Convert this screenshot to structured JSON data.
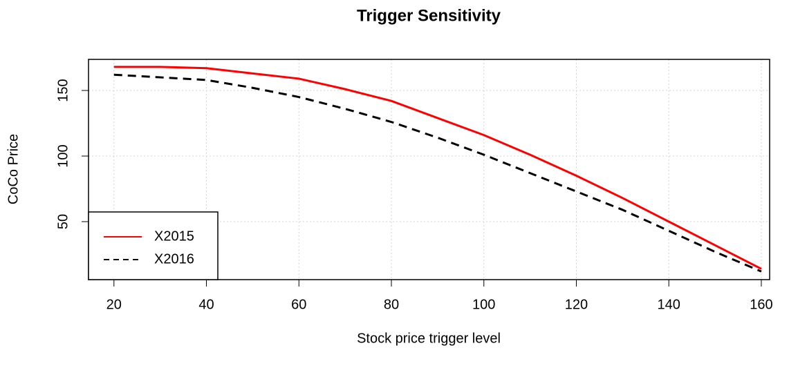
{
  "chart_data": {
    "type": "line",
    "title": "Trigger Sensitivity",
    "x_label": "Stock price trigger level",
    "y_label": "CoCo Price",
    "x": [
      20,
      30,
      40,
      50,
      60,
      70,
      80,
      90,
      100,
      110,
      120,
      130,
      140,
      150,
      160
    ],
    "series": [
      {
        "name": "X2015",
        "color": "#ff0000",
        "linestyle": "solid",
        "values": [
          168,
          168,
          167,
          163,
          159,
          151,
          142,
          129,
          116,
          101,
          85,
          68,
          50,
          32,
          14
        ]
      },
      {
        "name": "X2016",
        "color": "#000000",
        "linestyle": "dashed",
        "values": [
          162,
          160,
          158,
          152,
          145,
          136,
          126,
          114,
          101,
          87,
          73,
          59,
          43,
          27,
          12
        ]
      }
    ],
    "xlim": [
      14.5,
      161.8
    ],
    "xticks": [
      20,
      40,
      60,
      80,
      100,
      120,
      140,
      160
    ],
    "ylim": [
      5.8,
      173.7
    ],
    "yticks": [
      50,
      100,
      150
    ],
    "grid": true,
    "legend": "bottomleft"
  }
}
